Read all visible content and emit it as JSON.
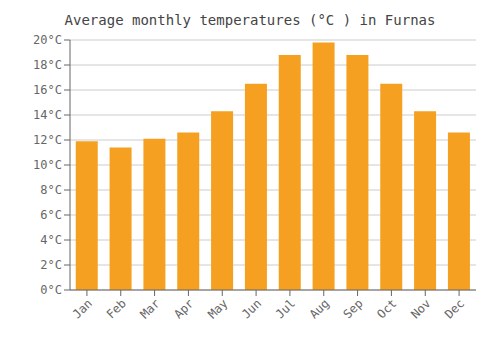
{
  "chart_data": {
    "type": "bar",
    "title": "Average monthly temperatures (°C ) in Furnas",
    "categories": [
      "Jan",
      "Feb",
      "Mar",
      "Apr",
      "May",
      "Jun",
      "Jul",
      "Aug",
      "Sep",
      "Oct",
      "Nov",
      "Dec"
    ],
    "values": [
      11.9,
      11.4,
      12.1,
      12.6,
      14.3,
      16.5,
      18.8,
      19.8,
      18.8,
      16.5,
      14.3,
      12.6
    ],
    "color": "#F5A020",
    "ylim": [
      0,
      20
    ],
    "yticks": [
      {
        "value": 0,
        "label": "0°C"
      },
      {
        "value": 2,
        "label": "2°C"
      },
      {
        "value": 4,
        "label": "4°C"
      },
      {
        "value": 6,
        "label": "6°C"
      },
      {
        "value": 8,
        "label": "8°C"
      },
      {
        "value": 10,
        "label": "10°C"
      },
      {
        "value": 12,
        "label": "12°C"
      },
      {
        "value": 14,
        "label": "14°C"
      },
      {
        "value": 16,
        "label": "16°C"
      },
      {
        "value": 18,
        "label": "18°C"
      },
      {
        "value": 20,
        "label": "20°C"
      }
    ],
    "grid": true
  }
}
